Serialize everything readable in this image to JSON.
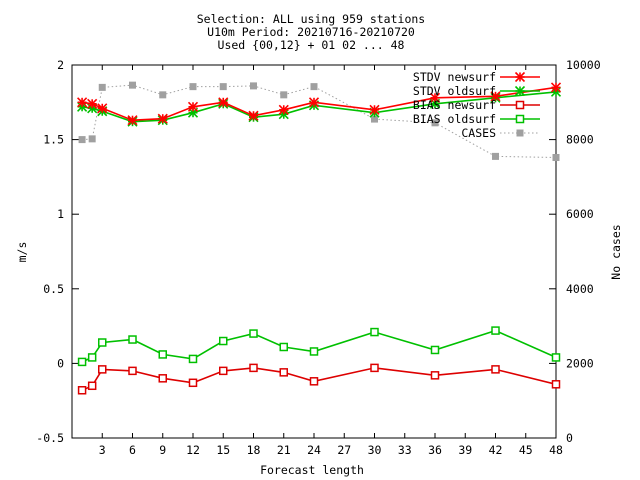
{
  "chart_data": {
    "type": "line",
    "title_lines": [
      "Selection: ALL using   959 stations",
      "U10m   Period: 20210716-20210720",
      "Used {00,12} + 01 02 ... 48"
    ],
    "xlabel": "Forecast length",
    "ylabel": "m/s",
    "y2label": "No cases",
    "xlim": [
      0,
      48
    ],
    "ylim": [
      -0.5,
      2
    ],
    "y2lim": [
      0,
      10000
    ],
    "x_ticks": [
      3,
      6,
      9,
      12,
      15,
      18,
      21,
      24,
      27,
      30,
      33,
      36,
      39,
      42,
      45,
      48
    ],
    "y_ticks": [
      -0.5,
      0,
      0.5,
      1,
      1.5,
      2
    ],
    "y_tick_labels": [
      "-0.5",
      "0",
      "0.5",
      "1",
      "1.5",
      "2"
    ],
    "y2_ticks": [
      0,
      2000,
      4000,
      6000,
      8000,
      10000
    ],
    "grid": false,
    "legend_position": "top-right",
    "series": [
      {
        "name": "STDV newsurf",
        "color": "#ff0000",
        "marker": "star",
        "axis": "y",
        "x": [
          1,
          2,
          3,
          6,
          9,
          12,
          15,
          18,
          21,
          24,
          30,
          36,
          42,
          48
        ],
        "values": [
          1.75,
          1.74,
          1.71,
          1.63,
          1.64,
          1.72,
          1.75,
          1.66,
          1.7,
          1.75,
          1.7,
          1.78,
          1.79,
          1.85
        ]
      },
      {
        "name": "STDV oldsurf",
        "color": "#00c000",
        "marker": "star",
        "axis": "y",
        "x": [
          1,
          2,
          3,
          6,
          9,
          12,
          15,
          18,
          21,
          24,
          30,
          36,
          42,
          48
        ],
        "values": [
          1.72,
          1.71,
          1.69,
          1.62,
          1.63,
          1.68,
          1.74,
          1.65,
          1.67,
          1.73,
          1.68,
          1.74,
          1.78,
          1.82
        ]
      },
      {
        "name": "BIAS newsurf",
        "color": "#dd0000",
        "marker": "open-square",
        "axis": "y",
        "x": [
          1,
          2,
          3,
          6,
          9,
          12,
          15,
          18,
          21,
          24,
          30,
          36,
          42,
          48
        ],
        "values": [
          -0.18,
          -0.15,
          -0.04,
          -0.05,
          -0.1,
          -0.13,
          -0.05,
          -0.03,
          -0.06,
          -0.12,
          -0.03,
          -0.08,
          -0.04,
          -0.14
        ]
      },
      {
        "name": "BIAS oldsurf",
        "color": "#00c000",
        "marker": "open-square",
        "axis": "y",
        "x": [
          1,
          2,
          3,
          6,
          9,
          12,
          15,
          18,
          21,
          24,
          30,
          36,
          42,
          48
        ],
        "values": [
          0.01,
          0.04,
          0.14,
          0.16,
          0.06,
          0.03,
          0.15,
          0.2,
          0.11,
          0.08,
          0.21,
          0.09,
          0.22,
          0.04
        ]
      },
      {
        "name": "CASES",
        "color": "#a0a0a0",
        "marker": "filled-square",
        "axis": "y2",
        "x": [
          1,
          2,
          3,
          6,
          9,
          12,
          15,
          18,
          21,
          24,
          30,
          36,
          42,
          48
        ],
        "values": [
          8000,
          8020,
          9400,
          9460,
          9200,
          9420,
          9420,
          9440,
          9200,
          9420,
          8550,
          8450,
          7550,
          7520
        ]
      }
    ]
  }
}
